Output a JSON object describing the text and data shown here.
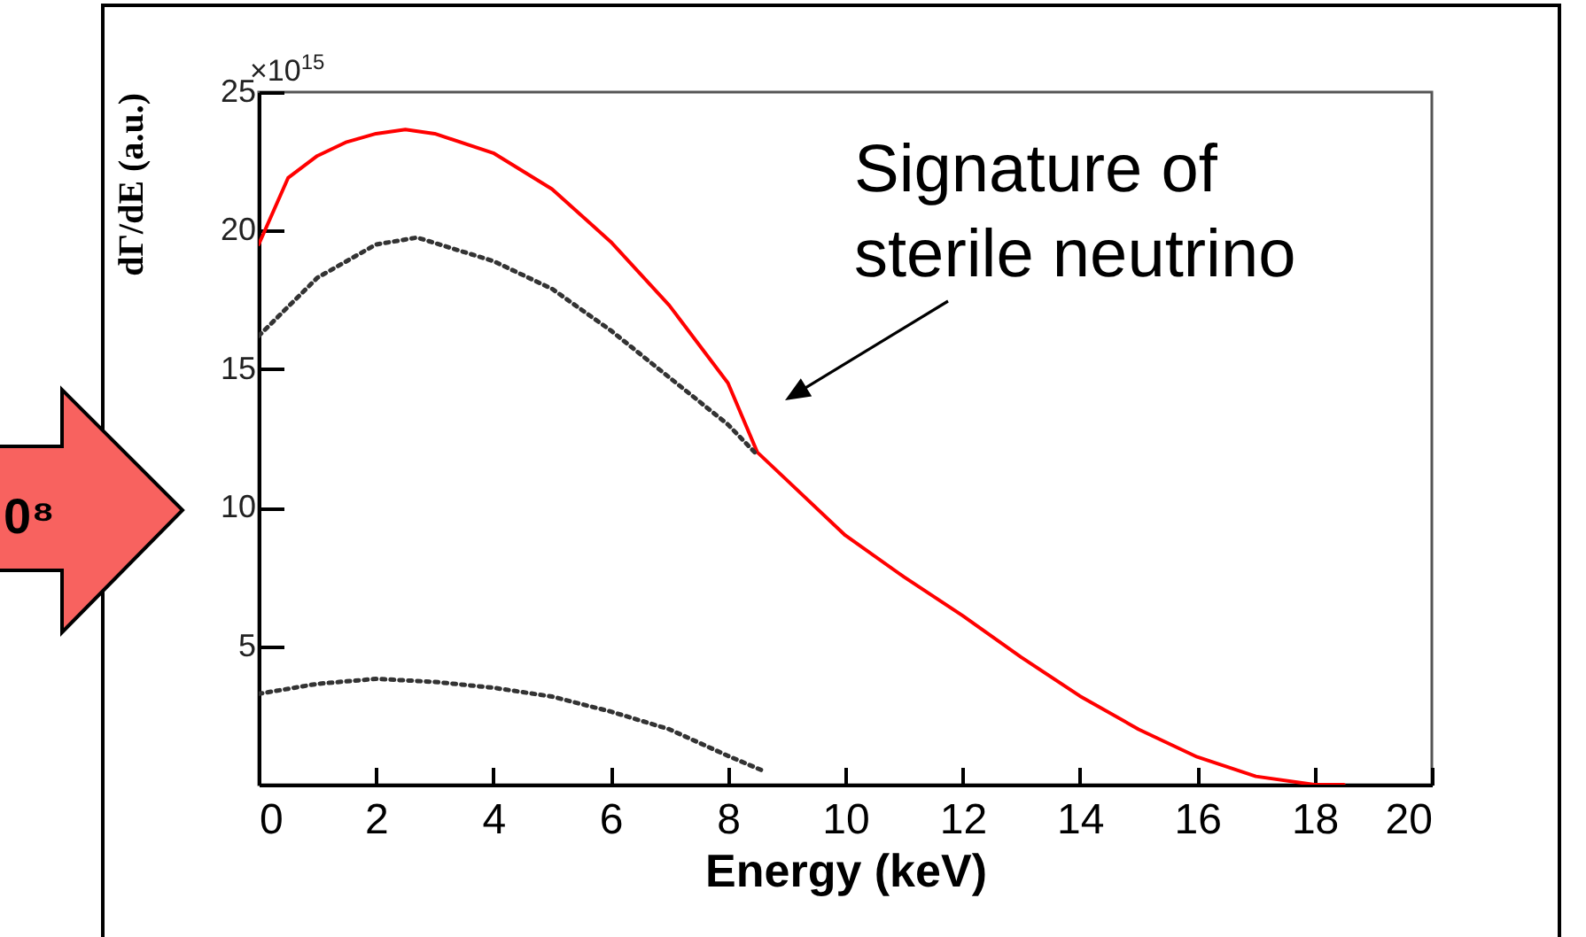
{
  "chart_data": {
    "type": "line",
    "xlabel": "Energy (keV)",
    "ylabel": "dΓ/dE (a.u.)",
    "annotations": [
      "Signature of\nsterile neutrino",
      "×10$^{15}$",
      "0⁸"
    ],
    "xlim": [
      0,
      20
    ],
    "xticks": [
      0,
      2,
      4,
      6,
      8,
      10,
      12,
      14,
      16,
      18,
      20
    ],
    "ylim": [
      0,
      25
    ],
    "yticks": [
      5,
      10,
      15,
      20,
      25
    ],
    "grid": false,
    "series": [
      {
        "color": "#ff0000",
        "line_style": "solid",
        "x": [
          0,
          0.5,
          1,
          1.5,
          2,
          2.5,
          3,
          4,
          5,
          6,
          7,
          8,
          8.5,
          9,
          10,
          11,
          12,
          13,
          14,
          15,
          16,
          17,
          18,
          18.5
        ],
        "values": [
          19.5,
          21.9,
          22.7,
          23.2,
          23.5,
          23.65,
          23.5,
          22.8,
          21.5,
          19.6,
          17.3,
          14.5,
          12.0,
          11.0,
          9.0,
          7.5,
          6.1,
          4.6,
          3.2,
          2.0,
          1.0,
          0.3,
          0,
          0
        ]
      },
      {
        "color": "#333333",
        "line_style": "dotted",
        "x": [
          0,
          1,
          2,
          2.7,
          4,
          5,
          6,
          7,
          8,
          8.5
        ],
        "values": [
          16.2,
          18.3,
          19.5,
          19.75,
          18.9,
          17.9,
          16.4,
          14.7,
          13.0,
          11.9
        ]
      },
      {
        "color": "#333333",
        "line_style": "dotted",
        "x": [
          0,
          1,
          2,
          3,
          4,
          5,
          6,
          7,
          8,
          8.6
        ],
        "values": [
          3.28,
          3.64,
          3.82,
          3.71,
          3.5,
          3.18,
          2.64,
          2.0,
          1.04,
          0.5
        ]
      }
    ]
  }
}
